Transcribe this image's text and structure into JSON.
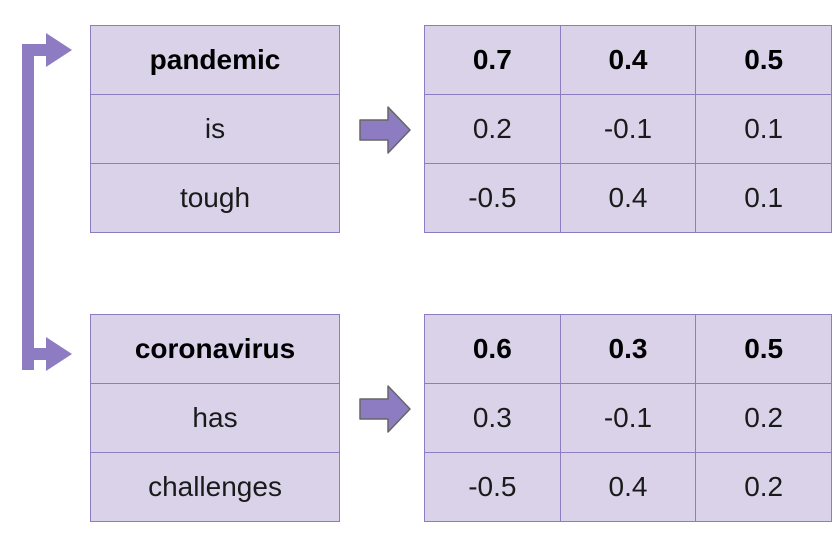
{
  "groups": [
    {
      "words": [
        "pandemic",
        "is",
        "tough"
      ],
      "vectors": [
        [
          "0.7",
          "0.4",
          "0.5"
        ],
        [
          "0.2",
          "-0.1",
          "0.1"
        ],
        [
          "-0.5",
          "0.4",
          "0.1"
        ]
      ]
    },
    {
      "words": [
        "coronavirus",
        "has",
        "challenges"
      ],
      "vectors": [
        [
          "0.6",
          "0.3",
          "0.5"
        ],
        [
          "0.3",
          "-0.1",
          "0.2"
        ],
        [
          "-0.5",
          "0.4",
          "0.2"
        ]
      ]
    }
  ],
  "colors": {
    "cell_fill": "#d9d2e9",
    "border": "#8e7cc3",
    "arrow_fill": "#8e7cc3",
    "arrow_stroke": "#666666"
  }
}
